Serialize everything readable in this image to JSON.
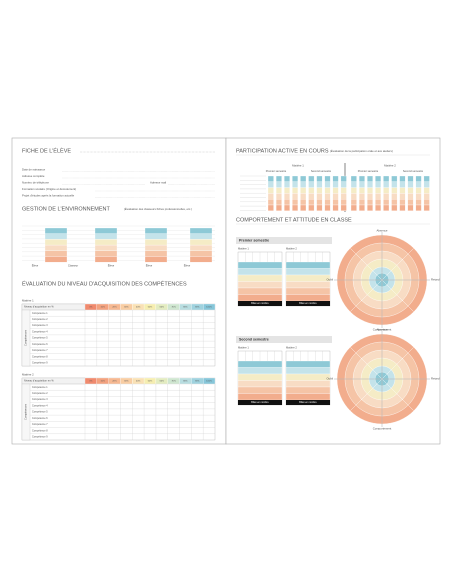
{
  "left": {
    "student": {
      "title": "FICHE DE L'ÉLÈVE",
      "fields": [
        "Date de naissance",
        "Adresse complète",
        "Numéro de téléphone",
        "Formation scolaire (Origine et déroulement)",
        "Projet d'études après la formation actuelle"
      ],
      "mail": "Adresse mail"
    },
    "environment": {
      "title": "GESTION DE L'ENVIRONNEMENT",
      "note": "(Évaluation des classeurs fiches professionnelles, etc.)",
      "labels": [
        "Élève",
        "Classeur",
        "Élève",
        "Élève",
        "Élève"
      ]
    },
    "skills": {
      "title": "ÉVALUATION DU NIVEAU D'ACQUISITION DES COMPÉTENCES",
      "header": "Niveau d'acquisition en %",
      "side_label": "Compétences",
      "levels": [
        "0%",
        "10%",
        "20%",
        "30%",
        "40%",
        "50%",
        "60%",
        "70%",
        "80%",
        "90%",
        "100%"
      ],
      "tables": [
        {
          "subject": "Matière 1",
          "rows": [
            "Compétence 1",
            "Compétence 2",
            "Compétence 3",
            "Compétence 4",
            "Compétence 5",
            "Compétence 6",
            "Compétence 7",
            "Compétence 8",
            "Compétence 9"
          ]
        },
        {
          "subject": "Matière 2",
          "rows": [
            "Compétence 1",
            "Compétence 2",
            "Compétence 3",
            "Compétence 4",
            "Compétence 5",
            "Compétence 6",
            "Compétence 7",
            "Compétence 8",
            "Compétence 9"
          ]
        }
      ]
    }
  },
  "right": {
    "participation": {
      "title": "PARTICIPATION ACTIVE EN COURS",
      "note": "(Évaluation de la participation orale et aux ateliers)",
      "subjects": [
        "Matière 1",
        "Matière 2"
      ],
      "semesters": [
        "Premier semestre",
        "Second semestre"
      ]
    },
    "behaviour": {
      "title": "COMPORTEMENT ET ATTITUDE EN CLASSE",
      "blocks": [
        {
          "semester": "Premier semestre",
          "grids": [
            "Matière 1",
            "Matière 2"
          ],
          "summary": "Bilan en nombre"
        },
        {
          "semester": "Second semestre",
          "grids": [
            "Matière 1",
            "Matière 2"
          ],
          "summary": "Bilan en nombre"
        }
      ],
      "axes": [
        "Absence",
        "Retard",
        "Comportement",
        "Oubli"
      ]
    }
  }
}
